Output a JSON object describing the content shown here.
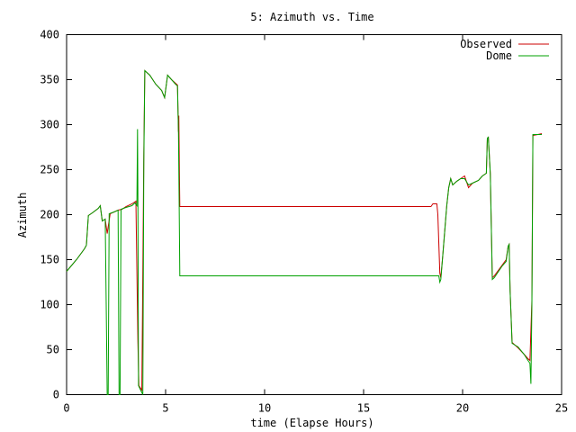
{
  "chart_data": {
    "type": "line",
    "title": "5: Azimuth vs. Time",
    "xlabel": "time (Elapse Hours)",
    "ylabel": "Azimuth",
    "xlim": [
      0,
      25
    ],
    "ylim": [
      0,
      400
    ],
    "xticks": [
      0,
      5,
      10,
      15,
      20,
      25
    ],
    "yticks": [
      0,
      50,
      100,
      150,
      200,
      250,
      300,
      350,
      400
    ],
    "grid": false,
    "legend_position": "top-right",
    "series": [
      {
        "name": "Observed",
        "color": "#cc0000",
        "points": [
          [
            0.0,
            137
          ],
          [
            0.5,
            150
          ],
          [
            0.9,
            162
          ],
          [
            1.0,
            166
          ],
          [
            1.1,
            199
          ],
          [
            1.3,
            202
          ],
          [
            1.6,
            207
          ],
          [
            1.7,
            210
          ],
          [
            1.8,
            193
          ],
          [
            1.95,
            195
          ],
          [
            2.05,
            179
          ],
          [
            2.2,
            201
          ],
          [
            2.4,
            203
          ],
          [
            2.6,
            205
          ],
          [
            2.8,
            206
          ],
          [
            3.0,
            209
          ],
          [
            3.3,
            212
          ],
          [
            3.5,
            215
          ],
          [
            3.6,
            60
          ],
          [
            3.65,
            10
          ],
          [
            3.8,
            5
          ],
          [
            3.9,
            270
          ],
          [
            3.95,
            360
          ],
          [
            4.2,
            355
          ],
          [
            4.5,
            345
          ],
          [
            4.8,
            338
          ],
          [
            4.95,
            330
          ],
          [
            5.1,
            355
          ],
          [
            5.3,
            350
          ],
          [
            5.5,
            346
          ],
          [
            5.6,
            344
          ],
          [
            5.65,
            292
          ],
          [
            5.67,
            310
          ],
          [
            5.7,
            242
          ],
          [
            5.72,
            209
          ],
          [
            18.4,
            209
          ],
          [
            18.5,
            212
          ],
          [
            18.7,
            212
          ],
          [
            18.75,
            200
          ],
          [
            18.85,
            135
          ],
          [
            18.9,
            130
          ],
          [
            19.0,
            155
          ],
          [
            19.2,
            210
          ],
          [
            19.3,
            230
          ],
          [
            19.4,
            240
          ],
          [
            19.5,
            233
          ],
          [
            19.7,
            237
          ],
          [
            19.9,
            240
          ],
          [
            20.1,
            243
          ],
          [
            20.3,
            230
          ],
          [
            20.5,
            235
          ],
          [
            20.8,
            238
          ],
          [
            21.0,
            243
          ],
          [
            21.2,
            246
          ],
          [
            21.25,
            285
          ],
          [
            21.3,
            286
          ],
          [
            21.4,
            245
          ],
          [
            21.5,
            130
          ],
          [
            21.6,
            132
          ],
          [
            22.0,
            144
          ],
          [
            22.2,
            150
          ],
          [
            22.3,
            165
          ],
          [
            22.35,
            167
          ],
          [
            22.4,
            115
          ],
          [
            22.5,
            58
          ],
          [
            22.8,
            52
          ],
          [
            23.1,
            45
          ],
          [
            23.3,
            40
          ],
          [
            23.4,
            38
          ],
          [
            23.5,
            105
          ],
          [
            23.55,
            288
          ],
          [
            23.8,
            289
          ],
          [
            24.0,
            290
          ]
        ]
      },
      {
        "name": "Dome",
        "color": "#00a000",
        "points": [
          [
            0.0,
            137
          ],
          [
            0.5,
            150
          ],
          [
            0.9,
            162
          ],
          [
            1.0,
            166
          ],
          [
            1.1,
            199
          ],
          [
            1.3,
            202
          ],
          [
            1.6,
            207
          ],
          [
            1.7,
            210
          ],
          [
            1.8,
            193
          ],
          [
            1.95,
            195
          ],
          [
            2.0,
            100
          ],
          [
            2.05,
            0
          ],
          [
            2.1,
            0
          ],
          [
            2.15,
            201
          ],
          [
            2.4,
            203
          ],
          [
            2.6,
            205
          ],
          [
            2.65,
            0
          ],
          [
            2.7,
            0
          ],
          [
            2.75,
            206
          ],
          [
            3.0,
            208
          ],
          [
            3.3,
            210
          ],
          [
            3.45,
            213
          ],
          [
            3.55,
            210
          ],
          [
            3.58,
            295
          ],
          [
            3.6,
            225
          ],
          [
            3.63,
            10
          ],
          [
            3.85,
            0
          ],
          [
            3.9,
            258
          ],
          [
            3.95,
            360
          ],
          [
            4.2,
            355
          ],
          [
            4.5,
            345
          ],
          [
            4.8,
            338
          ],
          [
            4.95,
            330
          ],
          [
            5.1,
            355
          ],
          [
            5.3,
            350
          ],
          [
            5.5,
            345
          ],
          [
            5.6,
            343
          ],
          [
            5.65,
            290
          ],
          [
            5.68,
            220
          ],
          [
            5.72,
            132
          ],
          [
            18.6,
            132
          ],
          [
            18.7,
            132
          ],
          [
            18.8,
            132
          ],
          [
            18.85,
            125
          ],
          [
            18.9,
            128
          ],
          [
            19.0,
            155
          ],
          [
            19.2,
            210
          ],
          [
            19.3,
            230
          ],
          [
            19.4,
            240
          ],
          [
            19.5,
            233
          ],
          [
            19.7,
            237
          ],
          [
            19.9,
            240
          ],
          [
            20.1,
            240
          ],
          [
            20.3,
            233
          ],
          [
            20.5,
            235
          ],
          [
            20.8,
            238
          ],
          [
            21.0,
            243
          ],
          [
            21.2,
            246
          ],
          [
            21.25,
            285
          ],
          [
            21.3,
            286
          ],
          [
            21.4,
            245
          ],
          [
            21.5,
            128
          ],
          [
            21.6,
            130
          ],
          [
            22.0,
            143
          ],
          [
            22.2,
            148
          ],
          [
            22.3,
            165
          ],
          [
            22.35,
            167
          ],
          [
            22.4,
            115
          ],
          [
            22.5,
            57
          ],
          [
            22.8,
            53
          ],
          [
            23.1,
            45
          ],
          [
            23.3,
            38
          ],
          [
            23.4,
            35
          ],
          [
            23.45,
            12
          ],
          [
            23.5,
            100
          ],
          [
            23.55,
            289
          ],
          [
            23.8,
            289
          ],
          [
            24.0,
            289
          ]
        ]
      }
    ]
  }
}
